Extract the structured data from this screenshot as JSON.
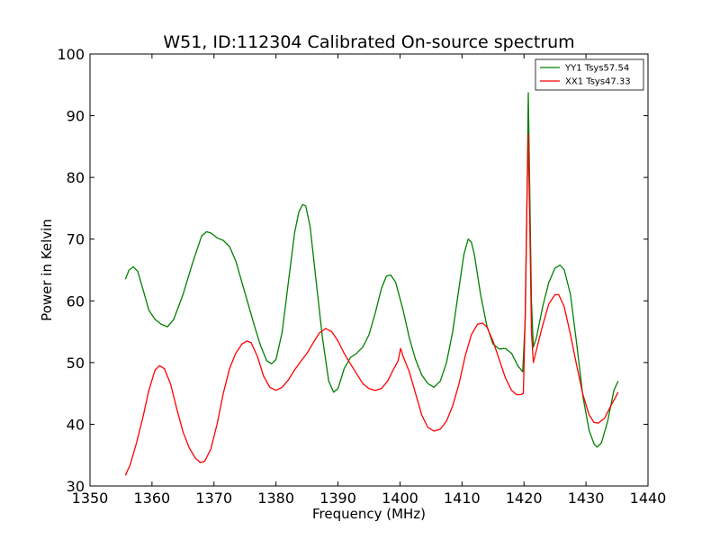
{
  "chart_data": {
    "type": "line",
    "title": "W51, ID:112304 Calibrated On-source spectrum",
    "xlabel": "Frequency (MHz)",
    "ylabel": "Power in Kelvin",
    "xlim": [
      1350,
      1440
    ],
    "ylim": [
      30,
      100
    ],
    "xticks": [
      "1350",
      "1360",
      "1370",
      "1380",
      "1390",
      "1400",
      "1410",
      "1420",
      "1430",
      "1440"
    ],
    "yticks": [
      "30",
      "40",
      "50",
      "60",
      "70",
      "80",
      "90",
      "100"
    ],
    "grid": false,
    "legend_position": "top-right",
    "series": [
      {
        "name": "YY1 Tsys57.54",
        "color": "#008000",
        "points": [
          [
            1355.7,
            63.5
          ],
          [
            1356.3,
            65.0
          ],
          [
            1357.0,
            65.5
          ],
          [
            1357.7,
            64.8
          ],
          [
            1358.5,
            62.0
          ],
          [
            1359.5,
            58.5
          ],
          [
            1360.5,
            57.0
          ],
          [
            1361.5,
            56.2
          ],
          [
            1362.5,
            55.8
          ],
          [
            1363.5,
            57.0
          ],
          [
            1365.0,
            61.0
          ],
          [
            1366.5,
            66.0
          ],
          [
            1368.0,
            70.5
          ],
          [
            1368.8,
            71.2
          ],
          [
            1369.5,
            71.0
          ],
          [
            1370.5,
            70.2
          ],
          [
            1371.5,
            69.8
          ],
          [
            1372.5,
            68.8
          ],
          [
            1373.5,
            66.5
          ],
          [
            1374.5,
            63.0
          ],
          [
            1375.5,
            59.5
          ],
          [
            1376.5,
            56.0
          ],
          [
            1377.5,
            52.8
          ],
          [
            1378.5,
            50.3
          ],
          [
            1379.3,
            49.8
          ],
          [
            1380.0,
            50.5
          ],
          [
            1381.0,
            55.0
          ],
          [
            1382.0,
            63.0
          ],
          [
            1383.0,
            71.0
          ],
          [
            1383.7,
            74.5
          ],
          [
            1384.3,
            75.6
          ],
          [
            1384.8,
            75.4
          ],
          [
            1385.5,
            72.0
          ],
          [
            1386.5,
            63.0
          ],
          [
            1387.5,
            54.0
          ],
          [
            1388.5,
            47.0
          ],
          [
            1389.3,
            45.2
          ],
          [
            1390.0,
            45.8
          ],
          [
            1391.0,
            49.0
          ],
          [
            1392.0,
            50.8
          ],
          [
            1393.0,
            51.5
          ],
          [
            1394.0,
            52.5
          ],
          [
            1395.0,
            54.5
          ],
          [
            1396.0,
            58.0
          ],
          [
            1397.0,
            62.0
          ],
          [
            1397.8,
            64.0
          ],
          [
            1398.5,
            64.2
          ],
          [
            1399.3,
            63.0
          ],
          [
            1400.5,
            58.5
          ],
          [
            1401.5,
            54.0
          ],
          [
            1402.5,
            50.5
          ],
          [
            1403.5,
            48.0
          ],
          [
            1404.5,
            46.6
          ],
          [
            1405.5,
            46.0
          ],
          [
            1406.5,
            47.0
          ],
          [
            1407.5,
            50.0
          ],
          [
            1408.5,
            55.0
          ],
          [
            1409.5,
            62.0
          ],
          [
            1410.3,
            67.5
          ],
          [
            1411.0,
            70.0
          ],
          [
            1411.5,
            69.5
          ],
          [
            1412.0,
            67.5
          ],
          [
            1413.0,
            61.0
          ],
          [
            1414.0,
            56.0
          ],
          [
            1415.0,
            53.0
          ],
          [
            1416.0,
            52.2
          ],
          [
            1417.0,
            52.3
          ],
          [
            1418.0,
            51.5
          ],
          [
            1419.0,
            49.5
          ],
          [
            1419.8,
            48.5
          ],
          [
            1420.2,
            57.0
          ],
          [
            1420.5,
            78.0
          ],
          [
            1420.7,
            93.7
          ],
          [
            1420.9,
            80.0
          ],
          [
            1421.2,
            60.0
          ],
          [
            1421.5,
            52.5
          ],
          [
            1422.0,
            54.0
          ],
          [
            1423.0,
            59.0
          ],
          [
            1424.0,
            63.0
          ],
          [
            1425.0,
            65.3
          ],
          [
            1425.8,
            65.8
          ],
          [
            1426.5,
            65.0
          ],
          [
            1427.5,
            61.0
          ],
          [
            1428.5,
            53.0
          ],
          [
            1429.5,
            44.5
          ],
          [
            1430.5,
            39.0
          ],
          [
            1431.3,
            36.8
          ],
          [
            1431.8,
            36.3
          ],
          [
            1432.5,
            37.0
          ],
          [
            1433.5,
            40.5
          ],
          [
            1434.5,
            45.5
          ],
          [
            1435.2,
            47.0
          ]
        ]
      },
      {
        "name": "XX1 Tsys47.33",
        "color": "#ff0000",
        "points": [
          [
            1355.7,
            31.7
          ],
          [
            1356.5,
            33.5
          ],
          [
            1357.5,
            37.0
          ],
          [
            1358.5,
            41.0
          ],
          [
            1359.5,
            45.5
          ],
          [
            1360.5,
            48.8
          ],
          [
            1361.2,
            49.5
          ],
          [
            1362.0,
            49.0
          ],
          [
            1363.0,
            46.5
          ],
          [
            1364.0,
            42.5
          ],
          [
            1365.0,
            38.8
          ],
          [
            1366.0,
            36.2
          ],
          [
            1367.0,
            34.5
          ],
          [
            1367.8,
            33.8
          ],
          [
            1368.5,
            34.0
          ],
          [
            1369.5,
            36.0
          ],
          [
            1370.5,
            40.0
          ],
          [
            1371.5,
            45.0
          ],
          [
            1372.5,
            49.0
          ],
          [
            1373.5,
            51.5
          ],
          [
            1374.5,
            53.0
          ],
          [
            1375.3,
            53.5
          ],
          [
            1376.0,
            53.2
          ],
          [
            1377.0,
            51.0
          ],
          [
            1378.0,
            47.8
          ],
          [
            1379.0,
            46.0
          ],
          [
            1380.0,
            45.5
          ],
          [
            1381.0,
            46.0
          ],
          [
            1382.0,
            47.2
          ],
          [
            1383.0,
            48.8
          ],
          [
            1384.0,
            50.2
          ],
          [
            1385.0,
            51.5
          ],
          [
            1386.0,
            53.2
          ],
          [
            1387.0,
            54.8
          ],
          [
            1388.0,
            55.5
          ],
          [
            1389.0,
            55.0
          ],
          [
            1390.0,
            53.5
          ],
          [
            1391.0,
            51.5
          ],
          [
            1392.0,
            49.8
          ],
          [
            1393.0,
            48.2
          ],
          [
            1394.0,
            46.6
          ],
          [
            1395.0,
            45.8
          ],
          [
            1396.0,
            45.5
          ],
          [
            1397.0,
            45.8
          ],
          [
            1398.0,
            47.0
          ],
          [
            1399.0,
            49.0
          ],
          [
            1399.7,
            50.3
          ],
          [
            1400.1,
            52.3
          ],
          [
            1400.5,
            51.0
          ],
          [
            1401.5,
            48.5
          ],
          [
            1402.5,
            45.0
          ],
          [
            1403.5,
            41.5
          ],
          [
            1404.5,
            39.5
          ],
          [
            1405.5,
            38.9
          ],
          [
            1406.5,
            39.2
          ],
          [
            1407.5,
            40.5
          ],
          [
            1408.5,
            43.0
          ],
          [
            1409.5,
            46.5
          ],
          [
            1410.5,
            51.0
          ],
          [
            1411.5,
            54.5
          ],
          [
            1412.5,
            56.2
          ],
          [
            1413.3,
            56.4
          ],
          [
            1414.0,
            55.8
          ],
          [
            1415.0,
            53.5
          ],
          [
            1416.0,
            50.5
          ],
          [
            1417.0,
            47.5
          ],
          [
            1418.0,
            45.5
          ],
          [
            1418.8,
            44.8
          ],
          [
            1419.5,
            44.8
          ],
          [
            1419.9,
            45.0
          ],
          [
            1420.2,
            58.0
          ],
          [
            1420.5,
            78.0
          ],
          [
            1420.7,
            87.0
          ],
          [
            1420.9,
            75.0
          ],
          [
            1421.2,
            55.0
          ],
          [
            1421.5,
            50.0
          ],
          [
            1422.0,
            52.0
          ],
          [
            1423.0,
            56.0
          ],
          [
            1424.0,
            59.5
          ],
          [
            1425.0,
            61.0
          ],
          [
            1425.6,
            61.0
          ],
          [
            1426.5,
            59.0
          ],
          [
            1427.5,
            54.5
          ],
          [
            1428.5,
            49.5
          ],
          [
            1429.5,
            44.8
          ],
          [
            1430.5,
            41.5
          ],
          [
            1431.3,
            40.3
          ],
          [
            1432.0,
            40.2
          ],
          [
            1433.0,
            41.0
          ],
          [
            1434.0,
            43.0
          ],
          [
            1435.2,
            45.2
          ]
        ]
      }
    ]
  }
}
